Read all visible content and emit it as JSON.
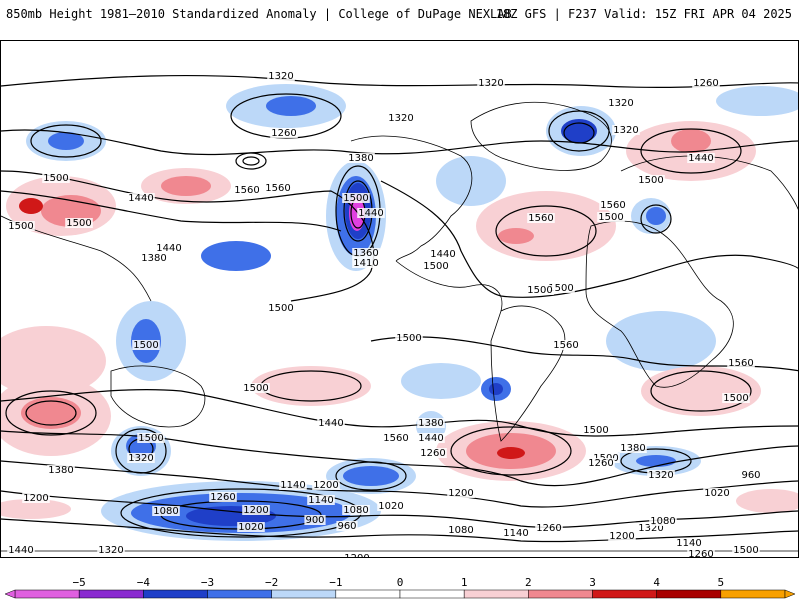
{
  "header": {
    "title": "850mb Height 1981–2010 Standardized Anomaly | College of DuPage NEXLAB",
    "run_info": "18Z GFS | F237 Valid: 15Z FRI APR 04 2025"
  },
  "map": {
    "projection": "global cylindrical",
    "contour_variable": "850mb height",
    "shading_variable": "standardized anomaly",
    "contour_labels": [
      "1320",
      "1320",
      "1260",
      "1320",
      "1320",
      "1260",
      "1380",
      "1320",
      "1440",
      "1500",
      "1500",
      "1560",
      "1560",
      "1500",
      "1440",
      "1440",
      "1500",
      "1560",
      "1500",
      "1560",
      "1440",
      "1500",
      "1500",
      "1380",
      "1440",
      "1360",
      "1410",
      "1500",
      "1560",
      "1500",
      "1500",
      "1500",
      "1500",
      "1500",
      "1560",
      "1380",
      "1500",
      "1500",
      "1560",
      "1500",
      "1440",
      "1260",
      "1380",
      "1320",
      "1500",
      "1440",
      "1380",
      "1260",
      "1200",
      "1320",
      "1260",
      "1140",
      "1200",
      "1080",
      "1140",
      "1200",
      "1080",
      "1020",
      "960",
      "1020",
      "1140",
      "1260",
      "1320",
      "1200",
      "1080",
      "1020",
      "900",
      "960",
      "1200",
      "1080",
      "1200",
      "1140",
      "1260",
      "1320",
      "1440",
      "1500"
    ],
    "anomaly_colors": {
      "neg5": "#e040e0",
      "neg4": "#7a1fc8",
      "neg3": "#1f3fc8",
      "neg2": "#3f70e8",
      "neg1": "#bcd8f8",
      "pos1": "#f8d0d4",
      "pos2": "#f08890",
      "pos3": "#d01818",
      "pos4": "#a80000",
      "pos5": "#f8a000"
    }
  },
  "colorbar": {
    "labels": [
      "−5",
      "−4",
      "−3",
      "−2",
      "−1",
      "0",
      "1",
      "2",
      "3",
      "4",
      "5"
    ],
    "colors": [
      "#e060e0",
      "#8a2ad0",
      "#1f3fc8",
      "#3f70e8",
      "#bcd8f8",
      "#ffffff",
      "#ffffff",
      "#f8d0d4",
      "#f08890",
      "#d01818",
      "#a80000",
      "#f8a000"
    ]
  }
}
